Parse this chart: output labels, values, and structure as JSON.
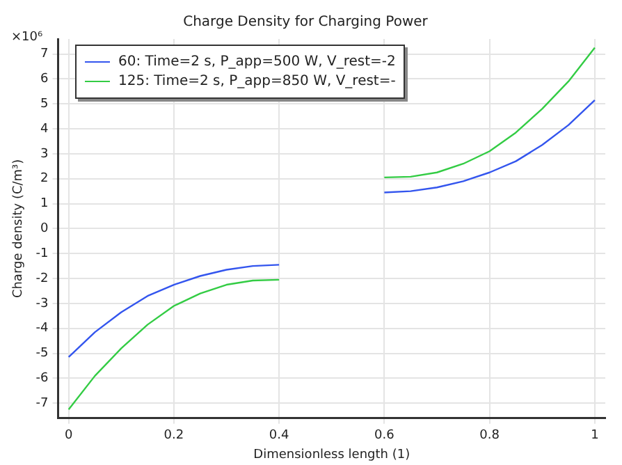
{
  "chart_data": {
    "type": "line",
    "title": "Charge Density for Charging Power",
    "xlabel": "Dimensionless length (1)",
    "ylabel": "Charge density (C/m³)",
    "annotations": [
      "×10⁶"
    ],
    "x": [
      0,
      0.05,
      0.1,
      0.15,
      0.2,
      0.25,
      0.3,
      0.35,
      0.4,
      0.5,
      0.6,
      0.65,
      0.7,
      0.75,
      0.8,
      0.85,
      0.9,
      0.95,
      1
    ],
    "series": [
      {
        "name": "60: Time=2 s, P_app=500 W, V_rest=-2",
        "color": "#3355ee",
        "values": [
          -5.15,
          -4.15,
          -3.35,
          -2.7,
          -2.25,
          -1.9,
          -1.65,
          -1.5,
          -1.45,
          null,
          1.45,
          1.5,
          1.65,
          1.9,
          2.25,
          2.7,
          3.35,
          4.15,
          5.15
        ]
      },
      {
        "name": "125: Time=2 s, P_app=850 W, V_rest=-",
        "color": "#33cc44",
        "values": [
          -7.25,
          -5.9,
          -4.8,
          -3.85,
          -3.1,
          -2.6,
          -2.25,
          -2.08,
          -2.05,
          null,
          2.05,
          2.08,
          2.25,
          2.6,
          3.1,
          3.85,
          4.8,
          5.9,
          7.25
        ]
      }
    ],
    "xlim": [
      -0.02,
      1.02
    ],
    "xticks": [
      0,
      0.2,
      0.4,
      0.6,
      0.8,
      1
    ],
    "ylim": [
      -7.6,
      7.6
    ],
    "yticks": [
      -7,
      -6,
      -5,
      -4,
      -3,
      -2,
      -1,
      0,
      1,
      2,
      3,
      4,
      5,
      6,
      7
    ],
    "grid": true,
    "legend": "top left",
    "marker": "none",
    "line_style": "solid"
  }
}
